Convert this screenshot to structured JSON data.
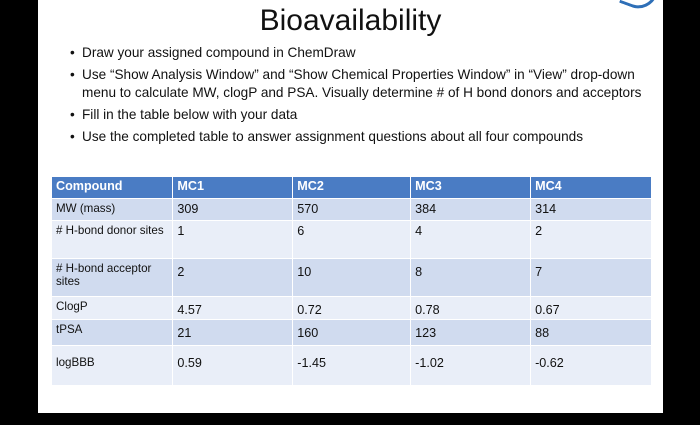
{
  "title": "Bioavailability",
  "bullets": [
    "Draw your assigned compound in ChemDraw",
    "Use “Show Analysis Window” and “Show Chemical Properties Window” in “View” drop-down menu to calculate MW, clogP and PSA.  Visually determine # of H bond donors and acceptors",
    "Fill in the table below with your data",
    "Use the completed table to answer assignment questions about all four compounds"
  ],
  "table": {
    "headers": [
      "Compound",
      "MC1",
      "MC2",
      "MC3",
      "MC4"
    ],
    "rows": [
      {
        "label": "MW (mass)",
        "values": [
          "309",
          "570",
          "384",
          "314"
        ]
      },
      {
        "label": "# H-bond donor sites",
        "values": [
          "1",
          "6",
          "4",
          "2"
        ]
      },
      {
        "label": "# H-bond acceptor sites",
        "values": [
          "2",
          "10",
          "8",
          "7"
        ]
      },
      {
        "label": "ClogP",
        "values": [
          "4.57",
          "0.72",
          "0.78",
          "0.67"
        ]
      },
      {
        "label": "tPSA",
        "values": [
          "21",
          "160",
          "123",
          "88"
        ]
      },
      {
        "label": "logBBB",
        "values": [
          "0.59",
          "-1.45",
          "-1.02",
          "-0.62"
        ]
      }
    ]
  }
}
